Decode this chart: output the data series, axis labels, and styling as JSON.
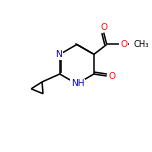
{
  "bg_color": "#ffffff",
  "bond_color": "#000000",
  "atom_colors": {
    "N": "#0000cd",
    "O": "#ff0000",
    "C": "#000000"
  },
  "font_size_atom": 6.5,
  "line_width": 1.1,
  "figsize": [
    1.52,
    1.52
  ],
  "dpi": 100
}
